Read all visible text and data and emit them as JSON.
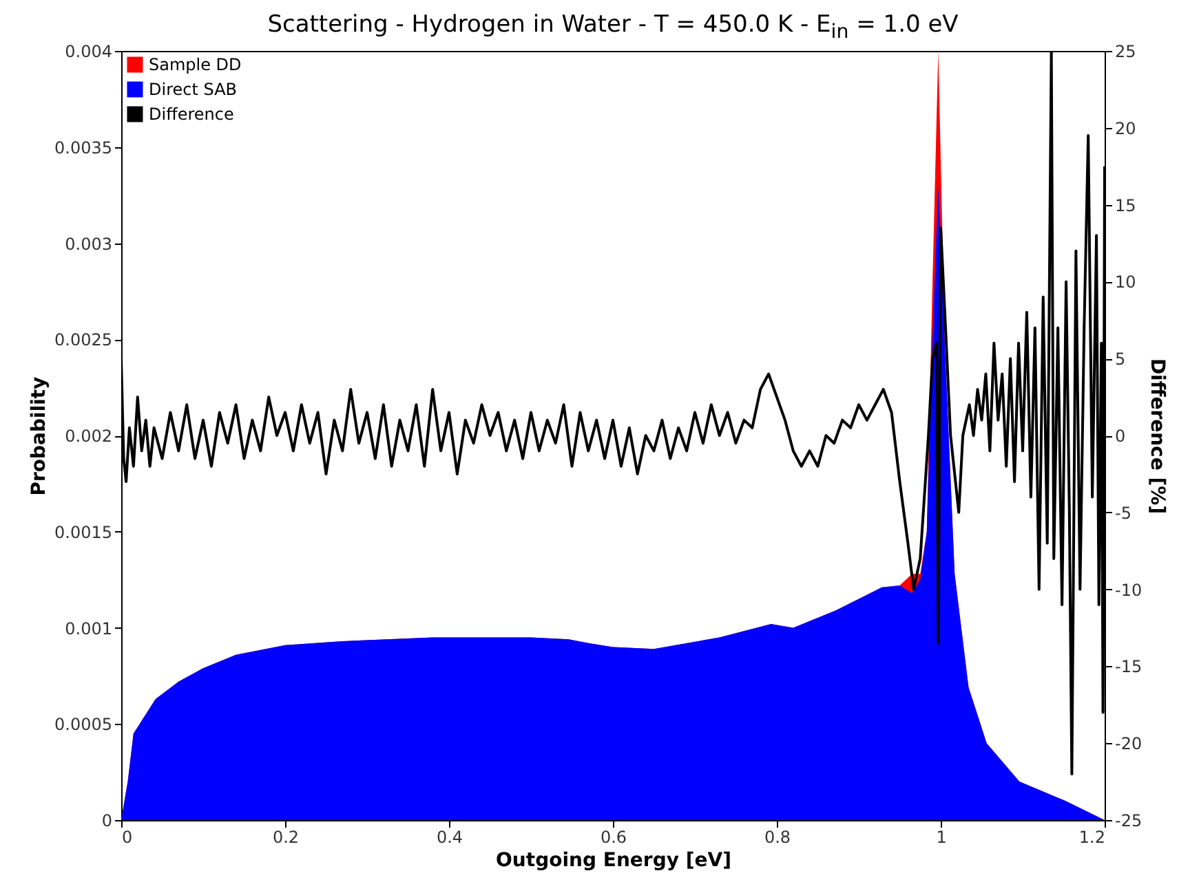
{
  "chart_data": {
    "type": "area",
    "title": "Scattering - Hydrogen in Water - T = 450.0 K - E$_{in}$ = 1.0 eV",
    "xlabel": "Outgoing Energy [eV]",
    "ylabel": "Probability",
    "y2label": "Difference [%]",
    "xlim": [
      0,
      1.2
    ],
    "xticks": [
      0,
      0.2,
      0.4,
      0.6,
      0.8,
      1,
      1.2
    ],
    "ylim": [
      0,
      0.004
    ],
    "yticks": [
      0,
      0.0005,
      0.001,
      0.0015,
      0.002,
      0.0025,
      0.003,
      0.0035,
      0.004
    ],
    "y2lim": [
      -25,
      25
    ],
    "y2ticks": [
      -25,
      -20,
      -15,
      -10,
      -5,
      0,
      5,
      10,
      15,
      20,
      25
    ],
    "legend": "top left",
    "series": [
      {
        "name": "Sample DD",
        "color": "#ff0000",
        "x": [
          0,
          0.008,
          0.015,
          0.042,
          0.07,
          0.1,
          0.14,
          0.2,
          0.27,
          0.38,
          0.5,
          0.546,
          0.57,
          0.6,
          0.65,
          0.73,
          0.793,
          0.82,
          0.872,
          0.928,
          0.95,
          0.965,
          0.975,
          0.983,
          0.99,
          0.997,
          1.005,
          1.017,
          1.034,
          1.056,
          1.096,
          1.152,
          1.2
        ],
        "values": [
          0,
          0.0002,
          0.00045,
          0.00063,
          0.00072,
          0.00079,
          0.00086,
          0.00091,
          0.00093,
          0.00095,
          0.00095,
          0.00094,
          0.00092,
          0.0009,
          0.00089,
          0.00095,
          0.00102,
          0.001,
          0.00109,
          0.00121,
          0.00122,
          0.00128,
          0.00128,
          0.0015,
          0.0028,
          0.004,
          0.00247,
          0.00128,
          0.00069,
          0.0004,
          0.0002,
          0.0001,
          0
        ]
      },
      {
        "name": "Direct SAB",
        "color": "#0000ff",
        "x": [
          0,
          0.008,
          0.015,
          0.042,
          0.07,
          0.1,
          0.14,
          0.2,
          0.27,
          0.38,
          0.5,
          0.546,
          0.57,
          0.6,
          0.65,
          0.73,
          0.793,
          0.82,
          0.872,
          0.928,
          0.95,
          0.965,
          0.975,
          0.983,
          0.99,
          0.997,
          1.005,
          1.017,
          1.034,
          1.056,
          1.096,
          1.152,
          1.2
        ],
        "values": [
          0,
          0.0002,
          0.00045,
          0.00063,
          0.00072,
          0.00079,
          0.00086,
          0.00091,
          0.00093,
          0.00095,
          0.00095,
          0.00094,
          0.00092,
          0.0009,
          0.00089,
          0.00095,
          0.00102,
          0.001,
          0.00109,
          0.00121,
          0.00122,
          0.00118,
          0.00125,
          0.0015,
          0.0025,
          0.0033,
          0.00247,
          0.00128,
          0.00069,
          0.0004,
          0.0002,
          0.0001,
          0
        ]
      },
      {
        "name": "Difference",
        "type": "line",
        "axis": "y2",
        "color": "#000000",
        "x": [
          0,
          0.003,
          0.006,
          0.01,
          0.015,
          0.02,
          0.025,
          0.03,
          0.035,
          0.04,
          0.05,
          0.06,
          0.07,
          0.08,
          0.09,
          0.1,
          0.11,
          0.12,
          0.13,
          0.14,
          0.15,
          0.16,
          0.17,
          0.18,
          0.19,
          0.2,
          0.21,
          0.22,
          0.23,
          0.24,
          0.25,
          0.26,
          0.27,
          0.28,
          0.29,
          0.3,
          0.31,
          0.32,
          0.33,
          0.34,
          0.35,
          0.36,
          0.37,
          0.38,
          0.39,
          0.4,
          0.41,
          0.42,
          0.43,
          0.44,
          0.45,
          0.46,
          0.47,
          0.48,
          0.49,
          0.5,
          0.51,
          0.52,
          0.53,
          0.54,
          0.55,
          0.56,
          0.57,
          0.58,
          0.59,
          0.6,
          0.61,
          0.62,
          0.63,
          0.64,
          0.65,
          0.66,
          0.67,
          0.68,
          0.69,
          0.7,
          0.71,
          0.72,
          0.73,
          0.74,
          0.75,
          0.76,
          0.77,
          0.78,
          0.79,
          0.8,
          0.81,
          0.82,
          0.83,
          0.84,
          0.85,
          0.86,
          0.87,
          0.88,
          0.89,
          0.9,
          0.91,
          0.92,
          0.93,
          0.94,
          0.95,
          0.96,
          0.967,
          0.975,
          0.985,
          0.99,
          0.995,
          0.997,
          1.0,
          1.005,
          1.012,
          1.018,
          1.022,
          1.027,
          1.035,
          1.04,
          1.045,
          1.05,
          1.055,
          1.06,
          1.065,
          1.07,
          1.075,
          1.08,
          1.085,
          1.09,
          1.095,
          1.1,
          1.105,
          1.11,
          1.115,
          1.12,
          1.125,
          1.13,
          1.135,
          1.138,
          1.143,
          1.148,
          1.153,
          1.157,
          1.16,
          1.165,
          1.17,
          1.175,
          1.18,
          1.185,
          1.19,
          1.193,
          1.196,
          1.198,
          1.2
        ],
        "values": [
          5,
          -1.5,
          -3,
          0.5,
          -2,
          2.5,
          -1,
          1,
          -2,
          0.5,
          -1.5,
          1.5,
          -1,
          2,
          -1.5,
          1,
          -2,
          1.5,
          -0.5,
          2,
          -1.5,
          1,
          -1,
          2.5,
          0,
          1.5,
          -1,
          2,
          -0.5,
          1.5,
          -2.5,
          1,
          -1,
          3,
          -0.5,
          1.5,
          -1.5,
          2,
          -2,
          1,
          -1,
          2,
          -2,
          3,
          -1,
          1.5,
          -2.5,
          1,
          -0.5,
          2,
          0,
          1.5,
          -1,
          1,
          -1.5,
          1.5,
          -1,
          1,
          -0.5,
          2,
          -2,
          1.5,
          -1,
          1,
          -1.5,
          1,
          -2,
          0.5,
          -2.5,
          0,
          -1,
          1,
          -1.5,
          0.5,
          -1,
          1.5,
          -0.5,
          2,
          0,
          1.5,
          -0.5,
          1,
          0.5,
          3,
          4,
          2.5,
          1,
          -1,
          -2,
          -1,
          -2,
          0,
          -0.5,
          1,
          0.5,
          2,
          1,
          2,
          3,
          1.5,
          -3,
          -7,
          -10,
          -8,
          0,
          5,
          6,
          -13.5,
          13.5,
          8,
          0,
          -3,
          -5,
          0,
          2,
          0,
          3,
          1,
          4,
          -1,
          6,
          1,
          4,
          -2,
          5,
          -3,
          6,
          -1,
          8,
          -4,
          7,
          -10,
          9,
          -7,
          25,
          -8,
          7,
          -11,
          10,
          -5,
          -22,
          12,
          -10,
          7,
          19.5,
          -4,
          13,
          -11,
          6,
          -18,
          17.5
        ]
      }
    ]
  }
}
